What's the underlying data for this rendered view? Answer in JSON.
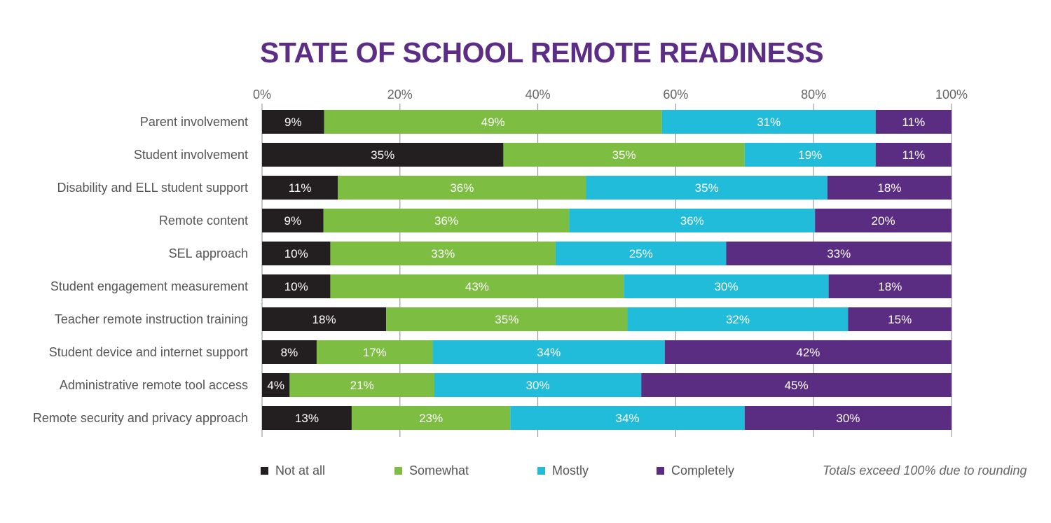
{
  "chart_data": {
    "type": "bar",
    "orientation": "horizontal",
    "stacked": true,
    "title": "STATE OF SCHOOL REMOTE READINESS",
    "note": "Totals exceed 100% due to rounding",
    "xlim": [
      0,
      100
    ],
    "xticks": [
      "0%",
      "20%",
      "40%",
      "60%",
      "80%",
      "100%"
    ],
    "grid": true,
    "legend_placement": "bottom",
    "categories": [
      "Parent involvement",
      "Student involvement",
      "Disability and ELL student support",
      "Remote content",
      "SEL approach",
      "Student engagement measurement",
      "Teacher remote instruction training",
      "Student device and internet support",
      "Administrative remote tool access",
      "Remote security and privacy approach"
    ],
    "series": [
      {
        "name": "Not at all",
        "color": "#231f20",
        "values": [
          9,
          35,
          11,
          9,
          10,
          10,
          18,
          8,
          4,
          13
        ]
      },
      {
        "name": "Somewhat",
        "color": "#7dbd41",
        "values": [
          49,
          35,
          36,
          36,
          33,
          43,
          35,
          17,
          21,
          23
        ]
      },
      {
        "name": "Mostly",
        "color": "#21bcd9",
        "values": [
          31,
          19,
          35,
          36,
          25,
          30,
          32,
          34,
          30,
          34
        ]
      },
      {
        "name": "Completely",
        "color": "#5a2d82",
        "values": [
          11,
          11,
          18,
          20,
          33,
          18,
          15,
          42,
          45,
          30
        ]
      }
    ]
  }
}
